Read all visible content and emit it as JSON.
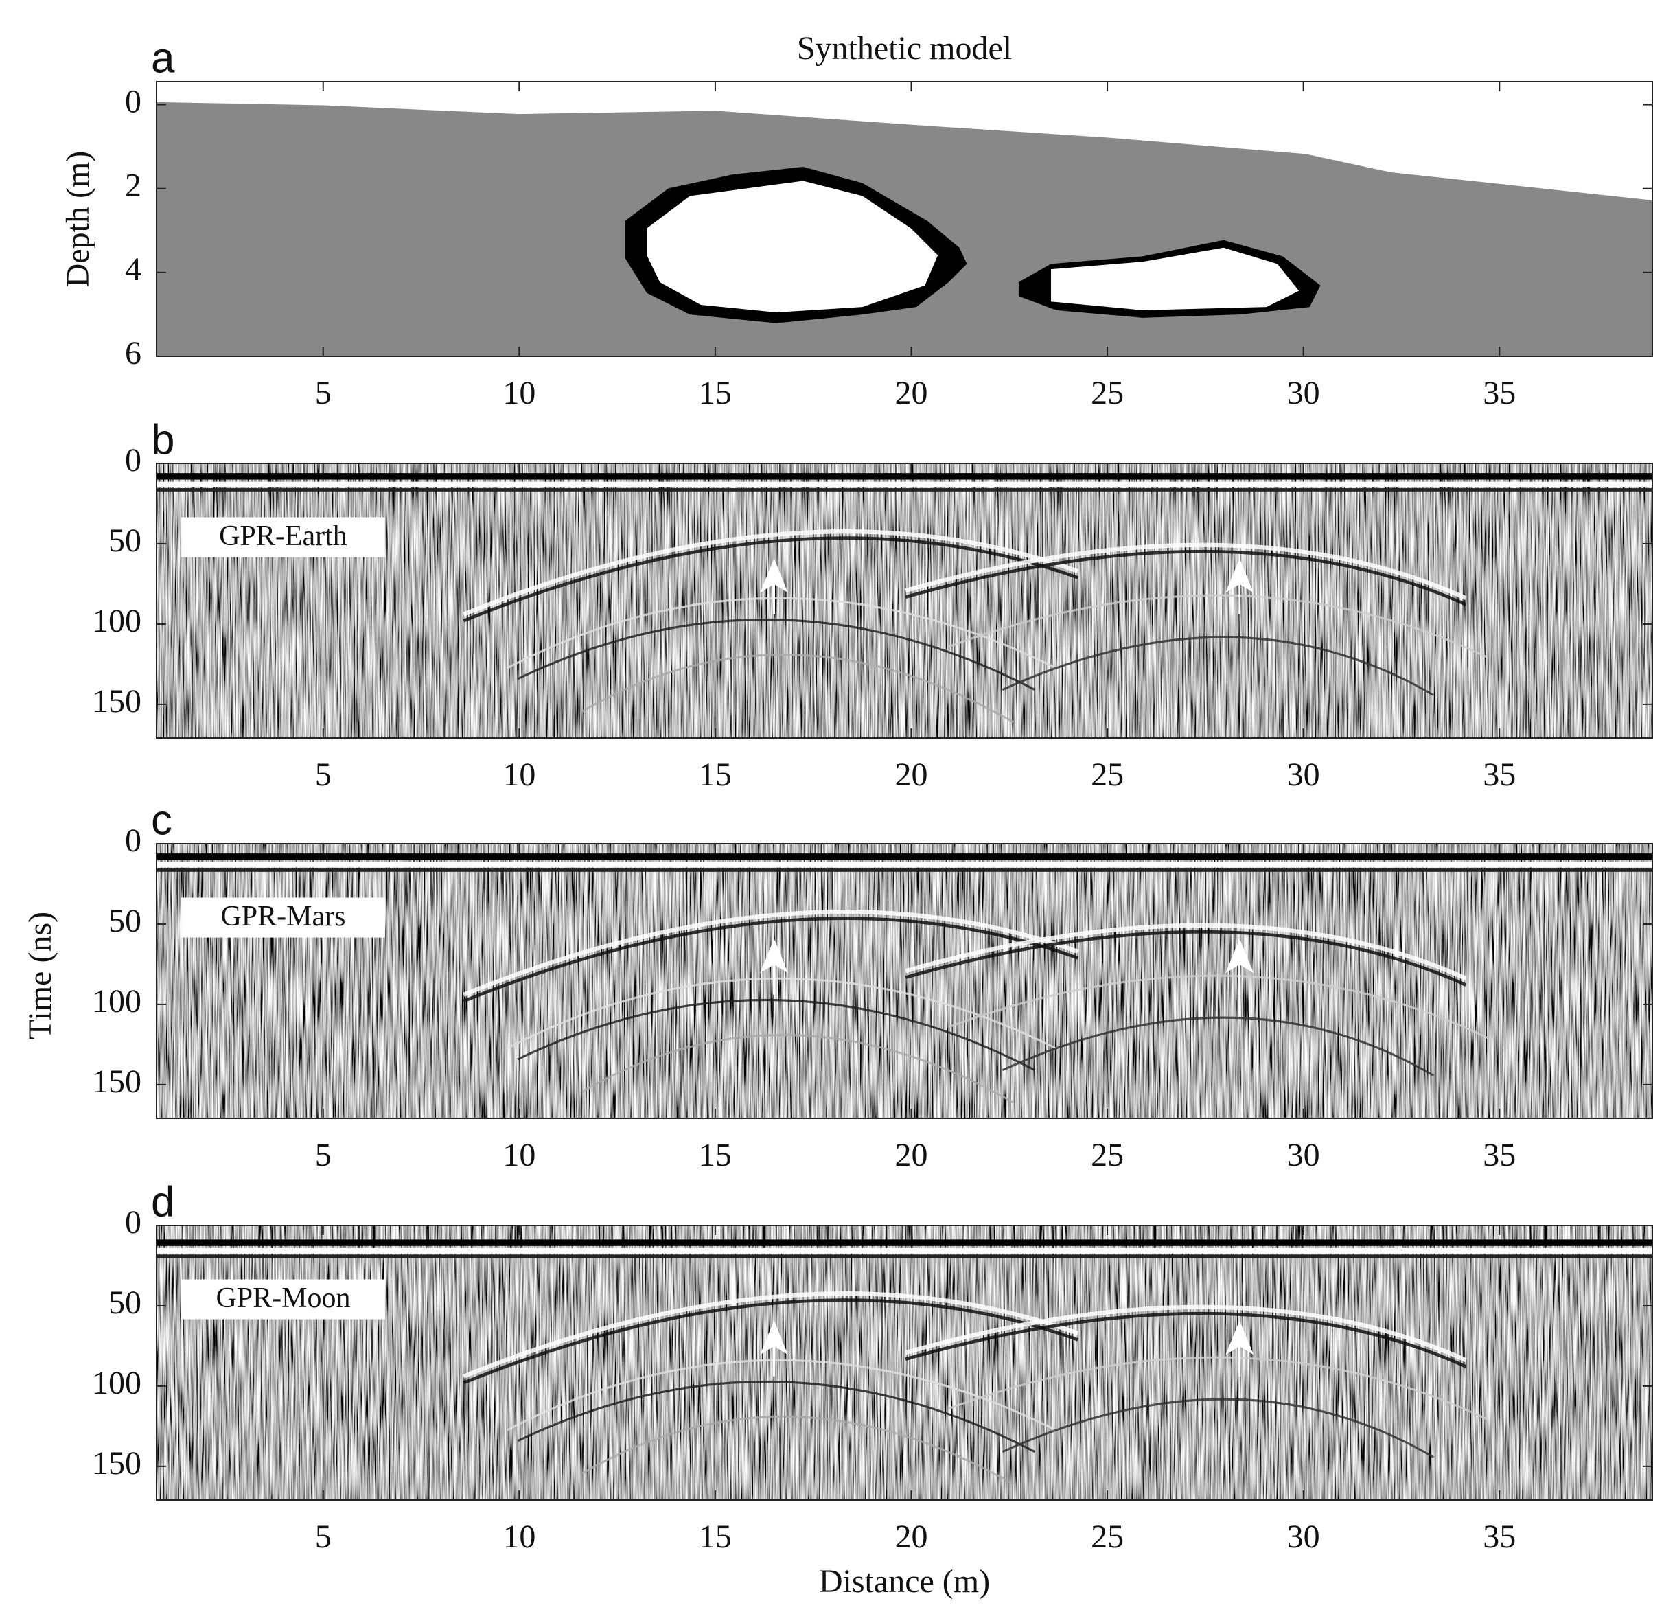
{
  "chart_data": [
    {
      "type": "model",
      "panel_label": "a",
      "title": "Synthetic model",
      "ylabel": "Depth (m)",
      "xlim": [
        0.75,
        38.9
      ],
      "ylim": [
        -0.55,
        6
      ],
      "y_reversed": true,
      "xticks": [
        5,
        10,
        15,
        20,
        25,
        30,
        35
      ],
      "yticks": [
        0,
        2,
        4,
        6
      ]
    },
    {
      "type": "radargram",
      "panel_label": "b",
      "annotation": "GPR-Earth",
      "xlim": [
        0.75,
        38.9
      ],
      "ylim": [
        0,
        171
      ],
      "y_reversed": true,
      "xticks": [
        5,
        10,
        15,
        20,
        25,
        30,
        35
      ],
      "yticks": [
        0,
        50,
        100,
        150
      ]
    },
    {
      "type": "radargram",
      "panel_label": "c",
      "annotation": "GPR-Mars",
      "ylabel": "Time (ns)",
      "xlim": [
        0.75,
        38.9
      ],
      "ylim": [
        0,
        171
      ],
      "y_reversed": true,
      "xticks": [
        5,
        10,
        15,
        20,
        25,
        30,
        35
      ],
      "yticks": [
        0,
        50,
        100,
        150
      ]
    },
    {
      "type": "radargram",
      "panel_label": "d",
      "annotation": "GPR-Moon",
      "xlabel": "Distance (m)",
      "xlim": [
        0.75,
        38.9
      ],
      "ylim": [
        0,
        171
      ],
      "y_reversed": true,
      "xticks": [
        5,
        10,
        15,
        20,
        25,
        30,
        35
      ],
      "yticks": [
        0,
        50,
        100,
        150
      ]
    }
  ]
}
